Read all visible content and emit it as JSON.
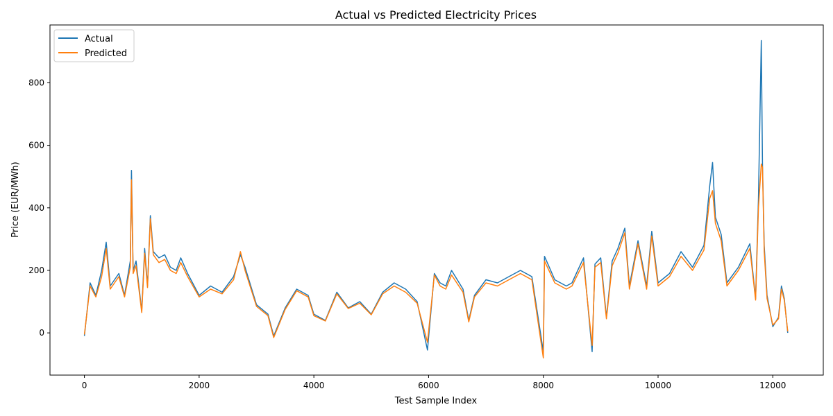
{
  "chart_data": {
    "type": "line",
    "title": "Actual vs Predicted Electricity Prices",
    "xlabel": "Test Sample Index",
    "ylabel": "Price (EUR/MWh)",
    "xlim": [
      -600,
      12880
    ],
    "ylim": [
      -135,
      985
    ],
    "xticks": [
      0,
      2000,
      4000,
      6000,
      8000,
      10000,
      12000
    ],
    "yticks": [
      0,
      200,
      400,
      600,
      800
    ],
    "grid": false,
    "legend_position": "top-left",
    "colors": {
      "actual": "#1f77b4",
      "predicted": "#ff7f0e"
    },
    "series": [
      {
        "name": "Actual",
        "x": [
          0,
          100,
          200,
          300,
          380,
          450,
          600,
          700,
          800,
          820,
          850,
          900,
          1000,
          1050,
          1100,
          1150,
          1200,
          1300,
          1400,
          1500,
          1600,
          1680,
          1800,
          2000,
          2200,
          2400,
          2600,
          2720,
          2800,
          3000,
          3200,
          3300,
          3500,
          3700,
          3900,
          4000,
          4200,
          4400,
          4600,
          4800,
          5000,
          5200,
          5400,
          5600,
          5800,
          5980,
          6100,
          6200,
          6300,
          6400,
          6600,
          6700,
          6800,
          7000,
          7200,
          7400,
          7600,
          7800,
          8000,
          8020,
          8200,
          8400,
          8500,
          8700,
          8850,
          8900,
          9000,
          9100,
          9200,
          9300,
          9420,
          9500,
          9650,
          9800,
          9890,
          10000,
          10200,
          10400,
          10600,
          10800,
          10900,
          10950,
          11000,
          11100,
          11200,
          11400,
          11600,
          11700,
          11750,
          11800,
          11820,
          11850,
          11900,
          12000,
          12100,
          12150,
          12200,
          12260
        ],
        "y": [
          -10,
          160,
          120,
          200,
          290,
          150,
          190,
          120,
          230,
          520,
          200,
          230,
          70,
          270,
          150,
          375,
          260,
          240,
          250,
          210,
          200,
          240,
          190,
          120,
          150,
          130,
          180,
          250,
          210,
          90,
          60,
          -10,
          80,
          140,
          120,
          60,
          40,
          130,
          80,
          100,
          60,
          130,
          160,
          140,
          100,
          -55,
          190,
          160,
          150,
          200,
          140,
          40,
          120,
          170,
          160,
          180,
          200,
          180,
          -60,
          245,
          170,
          150,
          160,
          240,
          -60,
          220,
          240,
          50,
          230,
          270,
          335,
          150,
          295,
          150,
          325,
          160,
          190,
          260,
          210,
          280,
          470,
          545,
          370,
          315,
          160,
          210,
          285,
          110,
          430,
          935,
          540,
          280,
          120,
          20,
          50,
          150,
          110,
          0
        ]
      },
      {
        "name": "Predicted",
        "x": [
          0,
          100,
          200,
          300,
          380,
          450,
          600,
          700,
          800,
          820,
          850,
          900,
          1000,
          1050,
          1100,
          1150,
          1200,
          1300,
          1400,
          1500,
          1600,
          1680,
          1800,
          2000,
          2200,
          2400,
          2600,
          2720,
          2800,
          3000,
          3200,
          3300,
          3500,
          3700,
          3900,
          4000,
          4200,
          4400,
          4600,
          4800,
          5000,
          5200,
          5400,
          5600,
          5800,
          5980,
          6100,
          6200,
          6300,
          6400,
          6600,
          6700,
          6800,
          7000,
          7200,
          7400,
          7600,
          7800,
          8000,
          8020,
          8200,
          8400,
          8500,
          8700,
          8850,
          8900,
          9000,
          9100,
          9200,
          9300,
          9420,
          9500,
          9650,
          9800,
          9890,
          10000,
          10200,
          10400,
          10600,
          10800,
          10900,
          10950,
          11000,
          11100,
          11200,
          11400,
          11600,
          11700,
          11750,
          11800,
          11820,
          11850,
          11900,
          12000,
          12100,
          12150,
          12200,
          12260
        ],
        "y": [
          -5,
          150,
          115,
          180,
          270,
          140,
          180,
          115,
          210,
          490,
          190,
          215,
          65,
          255,
          145,
          365,
          250,
          225,
          235,
          200,
          190,
          225,
          180,
          115,
          140,
          125,
          170,
          260,
          200,
          85,
          55,
          -15,
          75,
          135,
          115,
          55,
          38,
          125,
          78,
          95,
          58,
          125,
          150,
          130,
          95,
          -30,
          185,
          150,
          140,
          185,
          130,
          35,
          115,
          160,
          150,
          170,
          190,
          170,
          -80,
          230,
          160,
          140,
          150,
          225,
          -40,
          210,
          225,
          45,
          215,
          255,
          320,
          140,
          285,
          140,
          310,
          150,
          180,
          245,
          200,
          265,
          430,
          455,
          350,
          295,
          150,
          200,
          270,
          105,
          400,
          540,
          530,
          260,
          110,
          25,
          45,
          140,
          105,
          5
        ]
      }
    ]
  }
}
